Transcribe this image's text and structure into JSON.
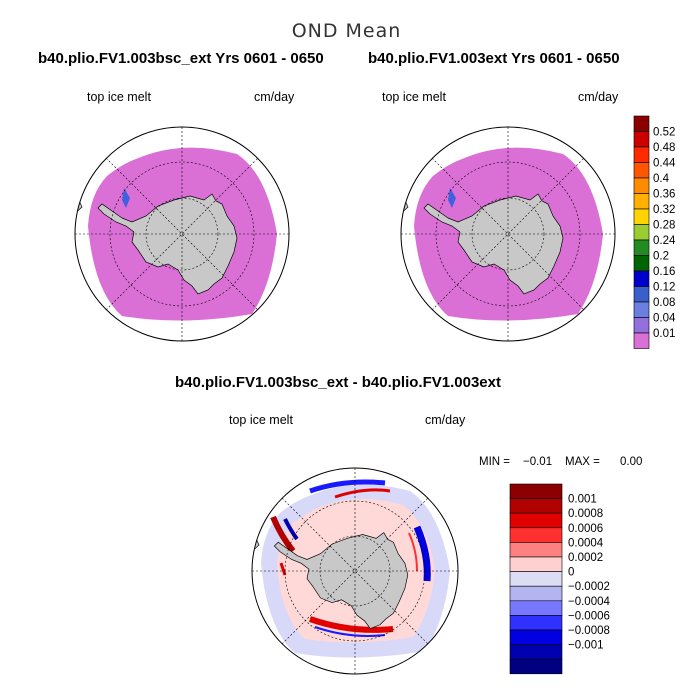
{
  "main_title": "OND Mean",
  "panels": [
    {
      "title": "b40.plio.FV1.003bsc_ext  Yrs 0601 - 0650",
      "variable": "top ice melt",
      "units": "cm/day"
    },
    {
      "title": "b40.plio.FV1.003ext  Yrs 0601 - 0650",
      "variable": "top ice melt",
      "units": "cm/day"
    },
    {
      "title": "b40.plio.FV1.003bsc_ext - b40.plio.FV1.003ext",
      "variable": "top ice melt",
      "units": "cm/day"
    }
  ],
  "stats": {
    "min_label": "MIN =",
    "min_value": "−0.01",
    "max_label": "MAX =",
    "max_value": "0.00"
  },
  "colorbar_top": {
    "labels": [
      "0.52",
      "0.48",
      "0.44",
      "0.4",
      "0.36",
      "0.32",
      "0.28",
      "0.24",
      "0.2",
      "0.16",
      "0.12",
      "0.08",
      "0.04",
      "0.01"
    ],
    "colors": [
      "#8b0000",
      "#cd0000",
      "#ff2a00",
      "#ff5500",
      "#ff8c00",
      "#ffb000",
      "#ffd400",
      "#9acd32",
      "#228b22",
      "#006400",
      "#0000cd",
      "#3a5fcd",
      "#6a7fe0",
      "#9370db",
      "#da70d6"
    ]
  },
  "colorbar_diff": {
    "labels": [
      "0.001",
      "0.0008",
      "0.0006",
      "0.0004",
      "0.0002",
      "0",
      "−0.0002",
      "−0.0004",
      "−0.0006",
      "−0.0008",
      "−0.001"
    ],
    "colors": [
      "#8b0000",
      "#b00000",
      "#e00000",
      "#ff3030",
      "#ff8080",
      "#ffd0d0",
      "#dcdcf5",
      "#b4b4f0",
      "#7878ff",
      "#3030ff",
      "#0000e0",
      "#0000b0",
      "#000080"
    ]
  },
  "colors": {
    "ocean": "#ffffff",
    "land": "#c8c8c8",
    "ice_melt": "#da70d6",
    "diff_pos": "#ffd8d8",
    "diff_neg": "#d8d8f8"
  }
}
